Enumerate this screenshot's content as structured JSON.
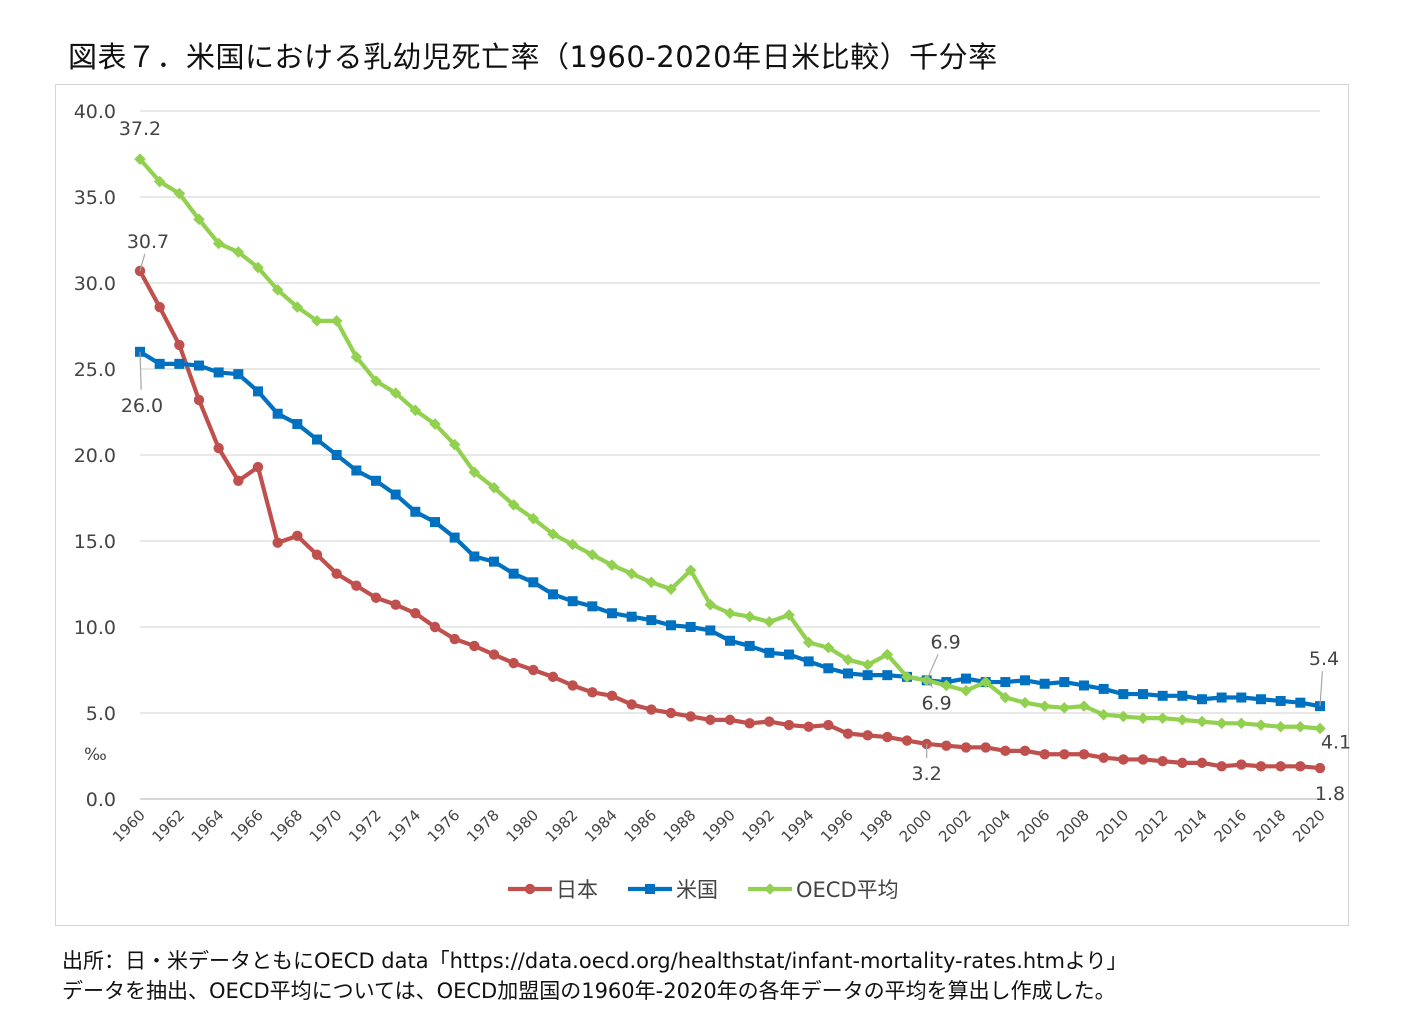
{
  "title": "図表７．米国における乳幼児死亡率（1960-2020年日米比較）千分率",
  "notes": {
    "line1": "出所：日・米データともにOECD data「https://data.oecd.org/healthstat/infant-mortality-rates.htmより」",
    "line2": "データを抽出、OECD平均については、OECD加盟国の1960年-2020年の各年データの平均を算出し作成した。"
  },
  "chart_data": {
    "type": "line",
    "ylabel": "‰",
    "ylim": [
      0,
      40
    ],
    "yticks": [
      "0.0",
      "5.0",
      "10.0",
      "15.0",
      "20.0",
      "25.0",
      "30.0",
      "35.0",
      "40.0"
    ],
    "grid": true,
    "legend_position": "bottom",
    "x": [
      1960,
      1961,
      1962,
      1963,
      1964,
      1965,
      1966,
      1967,
      1968,
      1969,
      1970,
      1971,
      1972,
      1973,
      1974,
      1975,
      1976,
      1977,
      1978,
      1979,
      1980,
      1981,
      1982,
      1983,
      1984,
      1985,
      1986,
      1987,
      1988,
      1989,
      1990,
      1991,
      1992,
      1993,
      1994,
      1995,
      1996,
      1997,
      1998,
      1999,
      2000,
      2001,
      2002,
      2003,
      2004,
      2005,
      2006,
      2007,
      2008,
      2009,
      2010,
      2011,
      2012,
      2013,
      2014,
      2015,
      2016,
      2017,
      2018,
      2019,
      2020
    ],
    "xticks": [
      "1960",
      "1962",
      "1964",
      "1966",
      "1968",
      "1970",
      "1972",
      "1974",
      "1976",
      "1978",
      "1980",
      "1982",
      "1984",
      "1986",
      "1988",
      "1990",
      "1992",
      "1994",
      "1996",
      "1998",
      "2000",
      "2002",
      "2004",
      "2006",
      "2008",
      "2010",
      "2012",
      "2014",
      "2016",
      "2018",
      "2020"
    ],
    "series": [
      {
        "name": "日本",
        "color": "#c0504d",
        "marker": "circle",
        "values": [
          30.7,
          28.6,
          26.4,
          23.2,
          20.4,
          18.5,
          19.3,
          14.9,
          15.3,
          14.2,
          13.1,
          12.4,
          11.7,
          11.3,
          10.8,
          10.0,
          9.3,
          8.9,
          8.4,
          7.9,
          7.5,
          7.1,
          6.6,
          6.2,
          6.0,
          5.5,
          5.2,
          5.0,
          4.8,
          4.6,
          4.6,
          4.4,
          4.5,
          4.3,
          4.2,
          4.3,
          3.8,
          3.7,
          3.6,
          3.4,
          3.2,
          3.1,
          3.0,
          3.0,
          2.8,
          2.8,
          2.6,
          2.6,
          2.6,
          2.4,
          2.3,
          2.3,
          2.2,
          2.1,
          2.1,
          1.9,
          2.0,
          1.9,
          1.9,
          1.9,
          1.8
        ]
      },
      {
        "name": "米国",
        "color": "#0070c0",
        "marker": "square",
        "values": [
          26.0,
          25.3,
          25.3,
          25.2,
          24.8,
          24.7,
          23.7,
          22.4,
          21.8,
          20.9,
          20.0,
          19.1,
          18.5,
          17.7,
          16.7,
          16.1,
          15.2,
          14.1,
          13.8,
          13.1,
          12.6,
          11.9,
          11.5,
          11.2,
          10.8,
          10.6,
          10.4,
          10.1,
          10.0,
          9.8,
          9.2,
          8.9,
          8.5,
          8.4,
          8.0,
          7.6,
          7.3,
          7.2,
          7.2,
          7.1,
          6.9,
          6.8,
          7.0,
          6.8,
          6.8,
          6.9,
          6.7,
          6.8,
          6.6,
          6.4,
          6.1,
          6.1,
          6.0,
          6.0,
          5.8,
          5.9,
          5.9,
          5.8,
          5.7,
          5.6,
          5.4
        ]
      },
      {
        "name": "OECD平均",
        "color": "#92d050",
        "marker": "diamond",
        "values": [
          37.2,
          35.9,
          35.2,
          33.7,
          32.3,
          31.8,
          30.9,
          29.6,
          28.6,
          27.8,
          27.8,
          25.7,
          24.3,
          23.6,
          22.6,
          21.8,
          20.6,
          19.0,
          18.1,
          17.1,
          16.3,
          15.4,
          14.8,
          14.2,
          13.6,
          13.1,
          12.6,
          12.2,
          13.3,
          11.3,
          10.8,
          10.6,
          10.3,
          10.7,
          9.1,
          8.8,
          8.1,
          7.8,
          8.4,
          7.1,
          6.9,
          6.6,
          6.3,
          6.8,
          5.9,
          5.6,
          5.4,
          5.3,
          5.4,
          4.9,
          4.8,
          4.7,
          4.7,
          4.6,
          4.5,
          4.4,
          4.4,
          4.3,
          4.2,
          4.2,
          4.1
        ]
      }
    ],
    "data_labels": [
      {
        "series": "日本",
        "x": 1960,
        "text": "30.7"
      },
      {
        "series": "日本",
        "x": 2000,
        "text": "3.2"
      },
      {
        "series": "日本",
        "x": 2020,
        "text": "1.8"
      },
      {
        "series": "米国",
        "x": 1960,
        "text": "26.0"
      },
      {
        "series": "米国",
        "x": 2000,
        "text": "6.9"
      },
      {
        "series": "米国",
        "x": 2020,
        "text": "5.4"
      },
      {
        "series": "OECD平均",
        "x": 1960,
        "text": "37.2"
      },
      {
        "series": "OECD平均",
        "x": 2000,
        "text": "6.9"
      },
      {
        "series": "OECD平均",
        "x": 2020,
        "text": "4.1"
      }
    ]
  }
}
